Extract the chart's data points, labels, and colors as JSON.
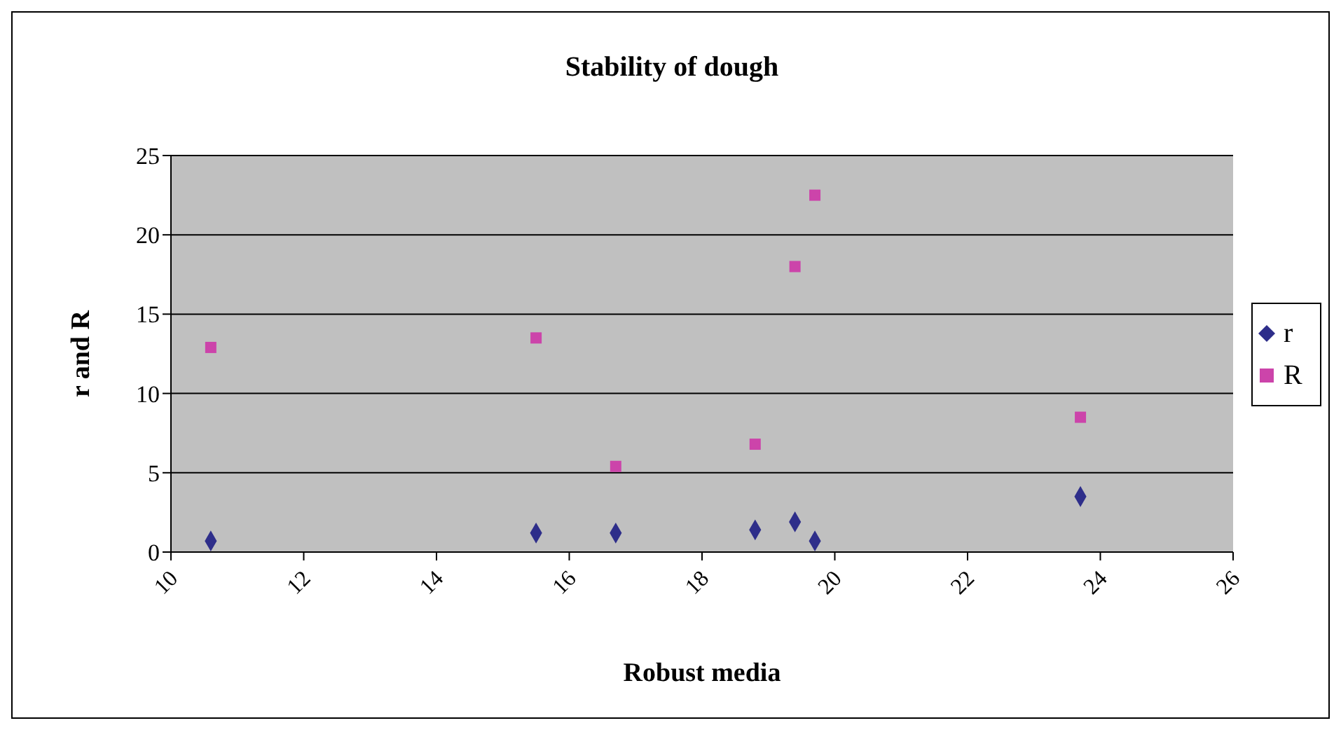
{
  "chart_data": {
    "type": "scatter",
    "title": "Stability of dough",
    "xlabel": "Robust media",
    "ylabel": "r and R",
    "x": [
      10.6,
      15.5,
      16.7,
      18.8,
      19.4,
      19.7,
      23.7
    ],
    "series": [
      {
        "name": "r",
        "color": "#2e2e8a",
        "marker": "diamond",
        "values": [
          0.7,
          1.2,
          1.2,
          1.4,
          1.9,
          0.7,
          3.5
        ]
      },
      {
        "name": "R",
        "color": "#cc44aa",
        "marker": "square",
        "values": [
          12.9,
          13.5,
          5.4,
          6.8,
          18.0,
          22.5,
          8.5
        ]
      }
    ],
    "xlim": [
      10,
      26
    ],
    "xticks": [
      10,
      12,
      14,
      16,
      18,
      20,
      22,
      24,
      26
    ],
    "ylim": [
      0,
      25
    ],
    "yticks": [
      0,
      5,
      10,
      15,
      20,
      25
    ],
    "grid": "y",
    "legend": "right"
  }
}
